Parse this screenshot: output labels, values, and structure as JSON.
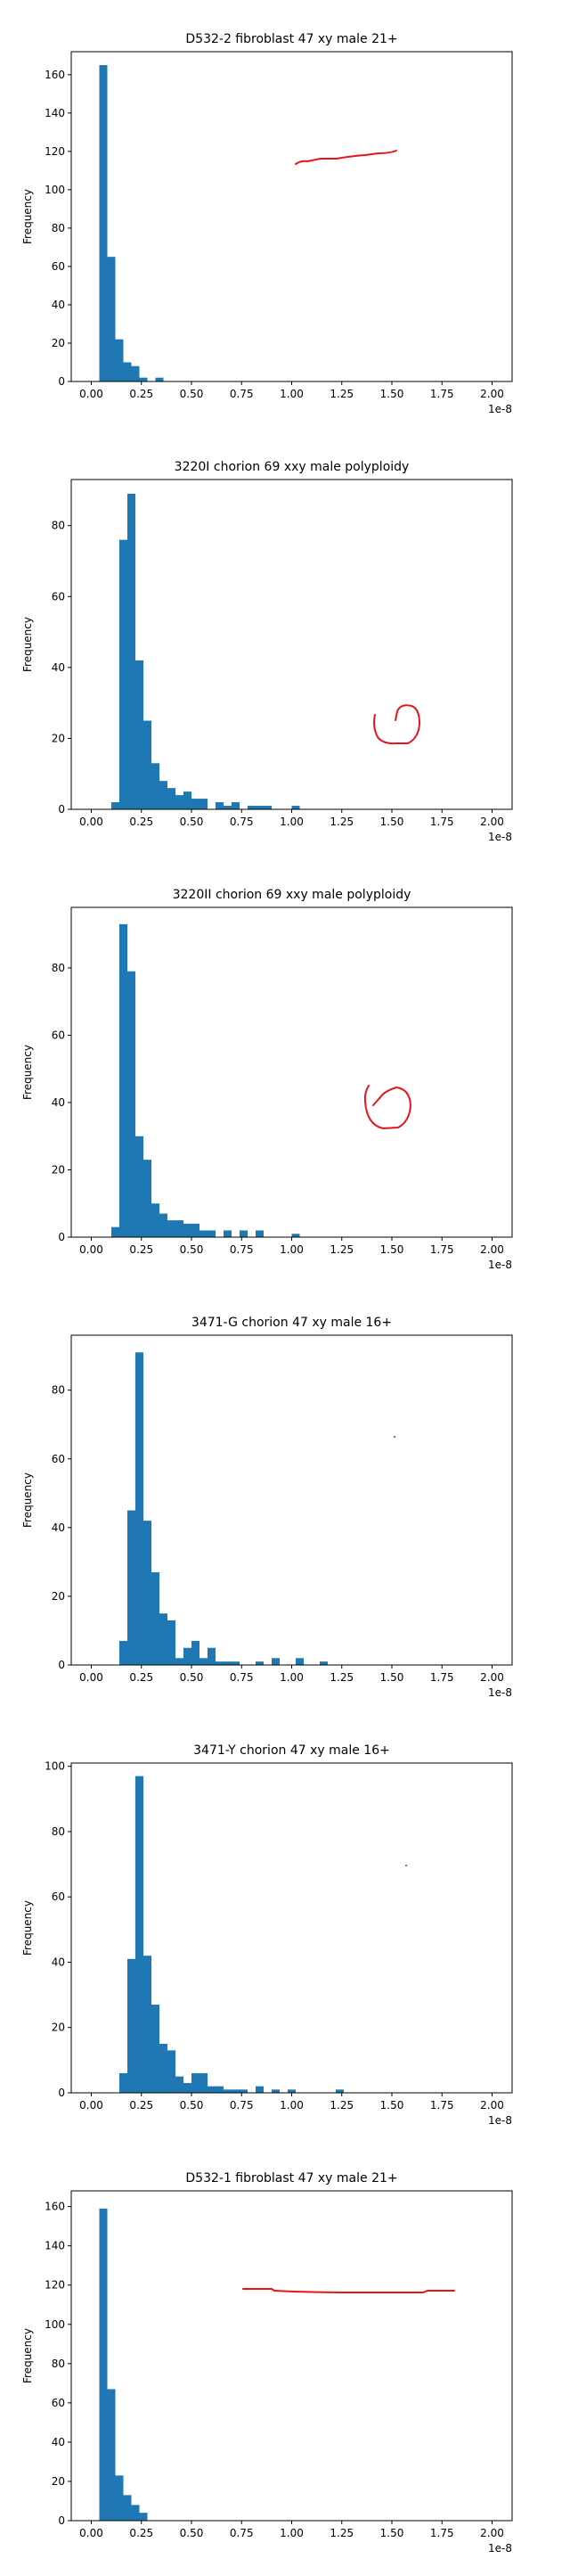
{
  "figure": {
    "background": "#ffffff",
    "bar_color": "#1f77b4",
    "annotation_color": "#e8141d",
    "axis_color": "#000000",
    "x_offset_label": "1e-8",
    "ylabel": "Frequency",
    "xticks": [
      "0.00",
      "0.25",
      "0.50",
      "0.75",
      "1.00",
      "1.25",
      "1.50",
      "1.75",
      "2.00"
    ]
  },
  "chart_data": [
    {
      "type": "bar",
      "title": "D532-2 fibroblast 47 xy male 21+",
      "xlabel": "",
      "ylabel": "Frequency",
      "x_unit_scale": "1e-8",
      "xlim": [
        -0.1,
        2.1
      ],
      "ylim": [
        0,
        172
      ],
      "yticks": [
        0,
        20,
        40,
        60,
        80,
        100,
        120,
        140,
        160
      ],
      "bin_width": 0.04,
      "bins": [
        {
          "x0": 0.04,
          "count": 165
        },
        {
          "x0": 0.08,
          "count": 65
        },
        {
          "x0": 0.12,
          "count": 22
        },
        {
          "x0": 0.16,
          "count": 10
        },
        {
          "x0": 0.2,
          "count": 8
        },
        {
          "x0": 0.24,
          "count": 2
        },
        {
          "x0": 0.32,
          "count": 2
        }
      ],
      "annotation": "line"
    },
    {
      "type": "bar",
      "title": "3220I chorion 69 xxy male polyploidy",
      "xlabel": "",
      "ylabel": "Frequency",
      "x_unit_scale": "1e-8",
      "xlim": [
        -0.1,
        2.1
      ],
      "ylim": [
        0,
        93
      ],
      "yticks": [
        0,
        20,
        40,
        60,
        80
      ],
      "bin_width": 0.04,
      "bins": [
        {
          "x0": 0.1,
          "count": 2
        },
        {
          "x0": 0.14,
          "count": 76
        },
        {
          "x0": 0.18,
          "count": 89
        },
        {
          "x0": 0.22,
          "count": 42
        },
        {
          "x0": 0.26,
          "count": 25
        },
        {
          "x0": 0.3,
          "count": 13
        },
        {
          "x0": 0.34,
          "count": 8
        },
        {
          "x0": 0.38,
          "count": 6
        },
        {
          "x0": 0.42,
          "count": 4
        },
        {
          "x0": 0.46,
          "count": 5
        },
        {
          "x0": 0.5,
          "count": 3
        },
        {
          "x0": 0.54,
          "count": 3
        },
        {
          "x0": 0.62,
          "count": 2
        },
        {
          "x0": 0.66,
          "count": 1
        },
        {
          "x0": 0.7,
          "count": 2
        },
        {
          "x0": 0.78,
          "count": 1
        },
        {
          "x0": 0.82,
          "count": 1
        },
        {
          "x0": 0.86,
          "count": 1
        },
        {
          "x0": 1.0,
          "count": 1
        }
      ],
      "annotation": "circle"
    },
    {
      "type": "bar",
      "title": "3220II chorion 69 xxy male polyploidy",
      "xlabel": "",
      "ylabel": "Frequency",
      "x_unit_scale": "1e-8",
      "xlim": [
        -0.1,
        2.1
      ],
      "ylim": [
        0,
        98
      ],
      "yticks": [
        0,
        20,
        40,
        60,
        80
      ],
      "bin_width": 0.04,
      "bins": [
        {
          "x0": 0.1,
          "count": 3
        },
        {
          "x0": 0.14,
          "count": 93
        },
        {
          "x0": 0.18,
          "count": 79
        },
        {
          "x0": 0.22,
          "count": 30
        },
        {
          "x0": 0.26,
          "count": 23
        },
        {
          "x0": 0.3,
          "count": 10
        },
        {
          "x0": 0.34,
          "count": 7
        },
        {
          "x0": 0.38,
          "count": 5
        },
        {
          "x0": 0.42,
          "count": 5
        },
        {
          "x0": 0.46,
          "count": 4
        },
        {
          "x0": 0.5,
          "count": 4
        },
        {
          "x0": 0.54,
          "count": 2
        },
        {
          "x0": 0.58,
          "count": 2
        },
        {
          "x0": 0.66,
          "count": 2
        },
        {
          "x0": 0.74,
          "count": 2
        },
        {
          "x0": 0.82,
          "count": 2
        },
        {
          "x0": 1.0,
          "count": 1
        }
      ],
      "annotation": "circle"
    },
    {
      "type": "bar",
      "title": "3471-G chorion 47 xy male 16+",
      "xlabel": "",
      "ylabel": "Frequency",
      "x_unit_scale": "1e-8",
      "xlim": [
        -0.1,
        2.1
      ],
      "ylim": [
        0,
        96
      ],
      "yticks": [
        0,
        20,
        40,
        60,
        80
      ],
      "bin_width": 0.04,
      "bins": [
        {
          "x0": 0.14,
          "count": 7
        },
        {
          "x0": 0.18,
          "count": 45
        },
        {
          "x0": 0.22,
          "count": 91
        },
        {
          "x0": 0.26,
          "count": 42
        },
        {
          "x0": 0.3,
          "count": 27
        },
        {
          "x0": 0.34,
          "count": 15
        },
        {
          "x0": 0.38,
          "count": 13
        },
        {
          "x0": 0.42,
          "count": 2
        },
        {
          "x0": 0.46,
          "count": 5
        },
        {
          "x0": 0.5,
          "count": 7
        },
        {
          "x0": 0.54,
          "count": 2
        },
        {
          "x0": 0.58,
          "count": 5
        },
        {
          "x0": 0.62,
          "count": 1
        },
        {
          "x0": 0.66,
          "count": 1
        },
        {
          "x0": 0.7,
          "count": 1
        },
        {
          "x0": 0.82,
          "count": 1
        },
        {
          "x0": 0.9,
          "count": 2
        },
        {
          "x0": 1.02,
          "count": 2
        },
        {
          "x0": 1.14,
          "count": 1
        }
      ],
      "annotation": "dot"
    },
    {
      "type": "bar",
      "title": "3471-Y chorion 47 xy male 16+",
      "xlabel": "",
      "ylabel": "Frequency",
      "x_unit_scale": "1e-8",
      "xlim": [
        -0.1,
        2.1
      ],
      "ylim": [
        0,
        101
      ],
      "yticks": [
        0,
        20,
        40,
        60,
        80,
        100
      ],
      "bin_width": 0.04,
      "bins": [
        {
          "x0": 0.14,
          "count": 6
        },
        {
          "x0": 0.18,
          "count": 41
        },
        {
          "x0": 0.22,
          "count": 97
        },
        {
          "x0": 0.26,
          "count": 42
        },
        {
          "x0": 0.3,
          "count": 27
        },
        {
          "x0": 0.34,
          "count": 15
        },
        {
          "x0": 0.38,
          "count": 13
        },
        {
          "x0": 0.42,
          "count": 5
        },
        {
          "x0": 0.46,
          "count": 3
        },
        {
          "x0": 0.5,
          "count": 6
        },
        {
          "x0": 0.54,
          "count": 6
        },
        {
          "x0": 0.58,
          "count": 2
        },
        {
          "x0": 0.62,
          "count": 2
        },
        {
          "x0": 0.66,
          "count": 1
        },
        {
          "x0": 0.7,
          "count": 1
        },
        {
          "x0": 0.74,
          "count": 1
        },
        {
          "x0": 0.82,
          "count": 2
        },
        {
          "x0": 0.9,
          "count": 1
        },
        {
          "x0": 0.98,
          "count": 1
        },
        {
          "x0": 1.22,
          "count": 1
        }
      ],
      "annotation": "dot"
    },
    {
      "type": "bar",
      "title": "D532-1 fibroblast 47 xy male 21+",
      "xlabel": "",
      "ylabel": "Frequency",
      "x_unit_scale": "1e-8",
      "xlim": [
        -0.1,
        2.1
      ],
      "ylim": [
        0,
        168
      ],
      "yticks": [
        0,
        20,
        40,
        60,
        80,
        100,
        120,
        140,
        160
      ],
      "bin_width": 0.04,
      "bins": [
        {
          "x0": 0.04,
          "count": 159
        },
        {
          "x0": 0.08,
          "count": 67
        },
        {
          "x0": 0.12,
          "count": 23
        },
        {
          "x0": 0.16,
          "count": 13
        },
        {
          "x0": 0.2,
          "count": 8
        },
        {
          "x0": 0.24,
          "count": 4
        }
      ],
      "annotation": "line"
    }
  ]
}
